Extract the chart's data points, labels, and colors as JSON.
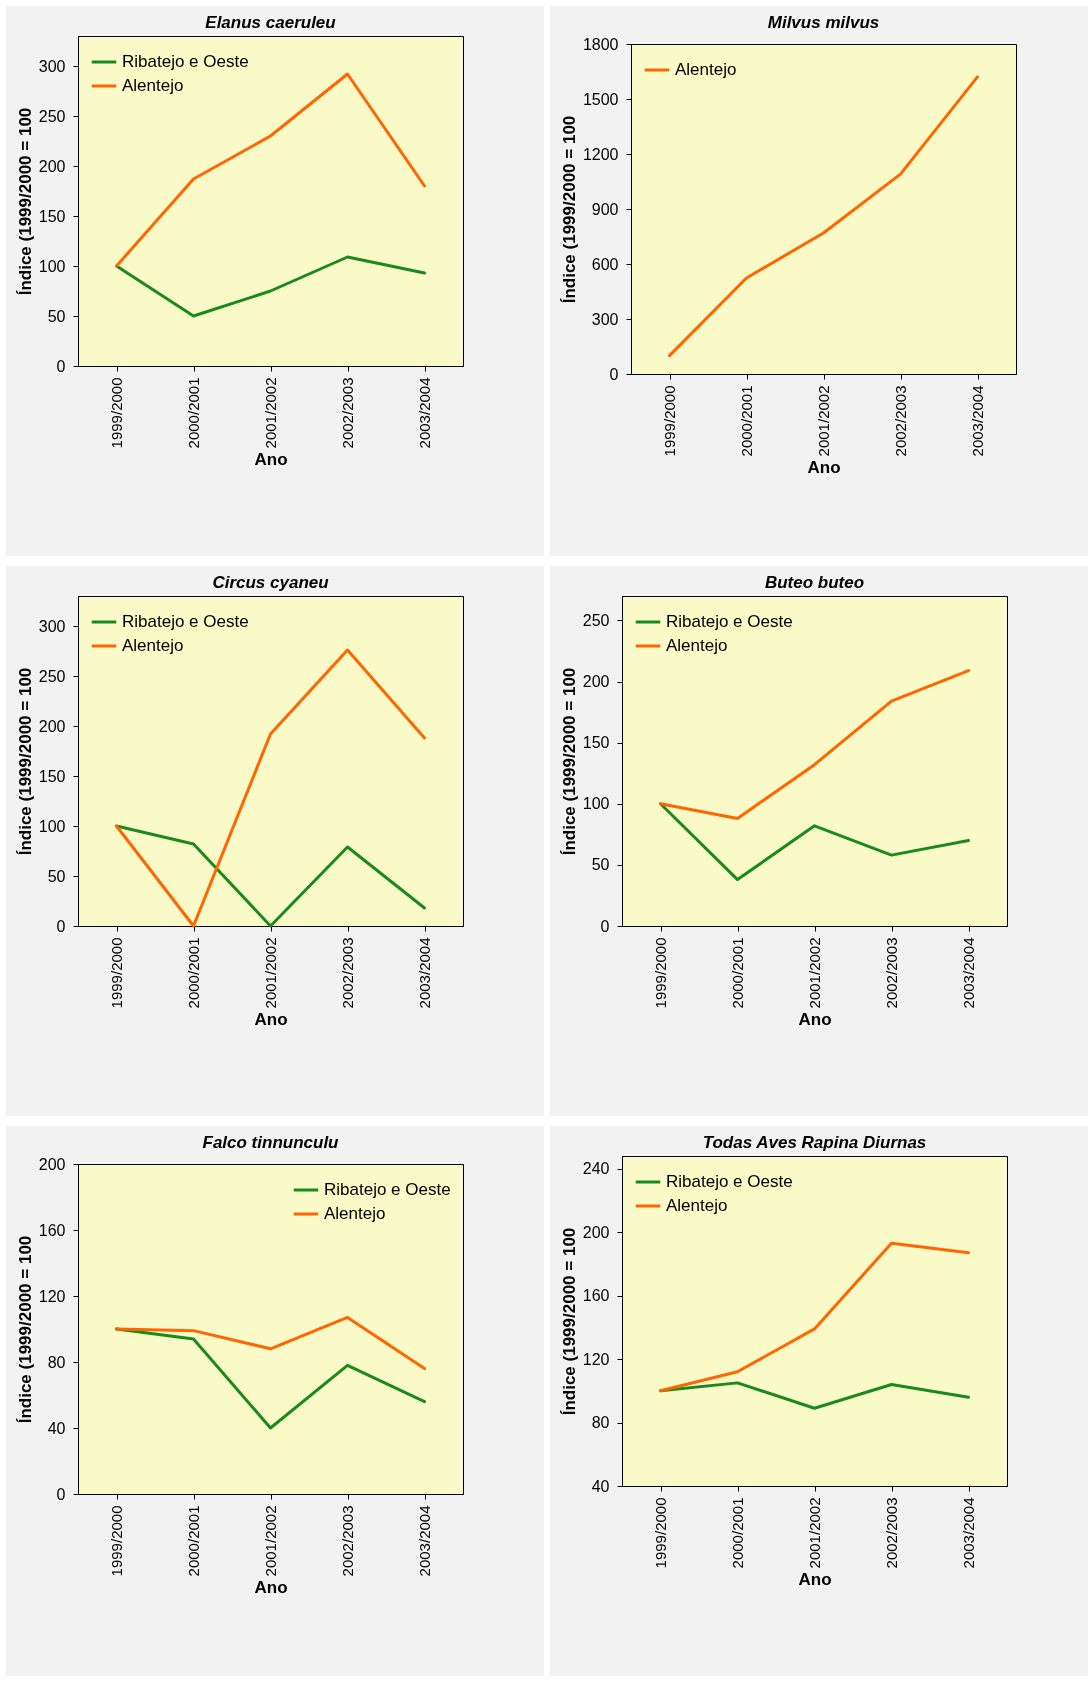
{
  "chart_data": [
    {
      "type": "line",
      "title": "Elanus caeruleu",
      "xlabel": "Ano",
      "ylabel": "Índice (1999/2000 = 100",
      "categories": [
        "1999/2000",
        "2000/2001",
        "2001/2002",
        "2002/2003",
        "2003/2004"
      ],
      "ylim": [
        0,
        330
      ],
      "yticks": [
        0,
        50,
        100,
        150,
        200,
        250,
        300
      ],
      "grid": false,
      "legend": "top left",
      "series": [
        {
          "name": "Ribatejo e Oeste",
          "color": "#1a8a1a",
          "values": [
            100,
            50,
            75,
            109,
            93
          ]
        },
        {
          "name": "Alentejo",
          "color": "#ff6600",
          "values": [
            100,
            187,
            230,
            292,
            180
          ]
        }
      ]
    },
    {
      "type": "line",
      "title": "Milvus milvus",
      "xlabel": "Ano",
      "ylabel": "Índice (1999/2000 = 100",
      "categories": [
        "1999/2000",
        "2000/2001",
        "2001/2002",
        "2002/2003",
        "2003/2004"
      ],
      "ylim": [
        0,
        1800
      ],
      "yticks": [
        0,
        300,
        600,
        900,
        1200,
        1500,
        1800
      ],
      "grid": false,
      "legend": "top left",
      "series": [
        {
          "name": "Alentejo",
          "color": "#ff6600",
          "values": [
            100,
            524,
            769,
            1090,
            1621
          ]
        }
      ]
    },
    {
      "type": "line",
      "title": "Circus cyaneu",
      "xlabel": "Ano",
      "ylabel": "Índice (1999/2000 = 100",
      "categories": [
        "1999/2000",
        "2000/2001",
        "2001/2002",
        "2002/2003",
        "2003/2004"
      ],
      "ylim": [
        0,
        330
      ],
      "yticks": [
        0,
        50,
        100,
        150,
        200,
        250,
        300
      ],
      "grid": false,
      "legend": "top left",
      "series": [
        {
          "name": "Ribatejo e Oeste",
          "color": "#1a8a1a",
          "values": [
            100,
            82,
            0,
            79,
            18
          ]
        },
        {
          "name": "Alentejo",
          "color": "#ff6600",
          "values": [
            100,
            0,
            192,
            276,
            188
          ]
        }
      ]
    },
    {
      "type": "line",
      "title": "Buteo buteo",
      "xlabel": "Ano",
      "ylabel": "Índice (1999/2000 = 100",
      "categories": [
        "1999/2000",
        "2000/2001",
        "2001/2002",
        "2002/2003",
        "2003/2004"
      ],
      "ylim": [
        0,
        270
      ],
      "yticks": [
        0,
        50,
        100,
        150,
        200,
        250
      ],
      "grid": false,
      "legend": "top left",
      "series": [
        {
          "name": "Ribatejo e Oeste",
          "color": "#1a8a1a",
          "values": [
            100,
            38,
            82,
            58,
            70
          ]
        },
        {
          "name": "Alentejo",
          "color": "#ff6600",
          "values": [
            100,
            88,
            132,
            184,
            209
          ]
        }
      ]
    },
    {
      "type": "line",
      "title": "Falco tinnunculu",
      "xlabel": "Ano",
      "ylabel": "Índice (1999/2000 = 100",
      "categories": [
        "1999/2000",
        "2000/2001",
        "2001/2002",
        "2002/2003",
        "2003/2004"
      ],
      "ylim": [
        0,
        200
      ],
      "yticks": [
        0,
        40,
        80,
        120,
        160,
        200
      ],
      "grid": false,
      "legend": "top right",
      "series": [
        {
          "name": "Ribatejo e Oeste",
          "color": "#1a8a1a",
          "values": [
            100,
            94,
            40,
            78,
            56
          ]
        },
        {
          "name": "Alentejo",
          "color": "#ff6600",
          "values": [
            100,
            99,
            88,
            107,
            76
          ]
        }
      ]
    },
    {
      "type": "line",
      "title": "Todas Aves Rapina Diurnas",
      "xlabel": "Ano",
      "ylabel": "Índice (1999/2000 = 100",
      "categories": [
        "1999/2000",
        "2000/2001",
        "2001/2002",
        "2002/2003",
        "2003/2004"
      ],
      "ylim": [
        40,
        248
      ],
      "yticks": [
        40,
        80,
        120,
        160,
        200,
        240
      ],
      "grid": false,
      "legend": "top left",
      "series": [
        {
          "name": "Ribatejo e Oeste",
          "color": "#1a8a1a",
          "values": [
            100,
            105,
            89,
            104,
            96
          ]
        },
        {
          "name": "Alentejo",
          "color": "#ff6600",
          "values": [
            100,
            112,
            139,
            193,
            187
          ]
        }
      ]
    }
  ]
}
